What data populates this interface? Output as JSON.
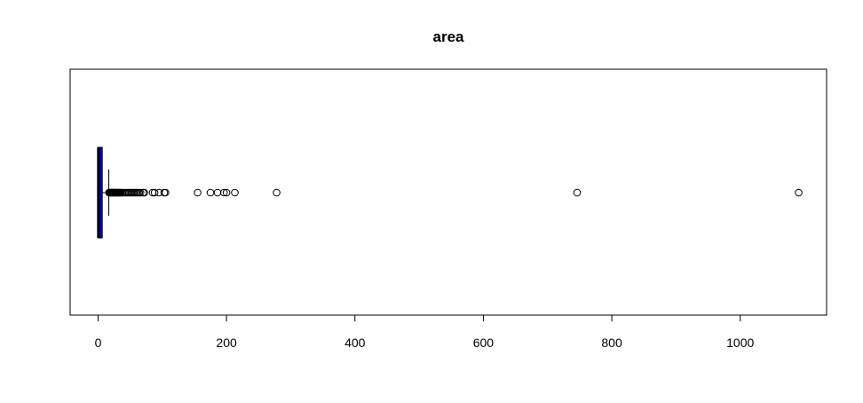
{
  "chart_data": {
    "type": "boxplot",
    "orientation": "horizontal",
    "title": "area",
    "xlabel": "",
    "ylabel": "",
    "xlim": [
      -43.5,
      1134.5
    ],
    "xticks": [
      0,
      200,
      400,
      600,
      800,
      1000
    ],
    "xtick_labels": [
      "0",
      "200",
      "400",
      "600",
      "800",
      "1000"
    ],
    "box": {
      "min": 0,
      "q1": 0,
      "median": 0.5,
      "q3": 6.5,
      "whisker_high": 16.7,
      "fill_color": "#0000cc"
    },
    "outliers": [
      17,
      18,
      19,
      20,
      21,
      22,
      23,
      24,
      25,
      26,
      27,
      28,
      29,
      30,
      31,
      32,
      33,
      34,
      35,
      36,
      38,
      40,
      42,
      44,
      46,
      48,
      50,
      52,
      54,
      56,
      58,
      60,
      62,
      64,
      66,
      70,
      72,
      85,
      88,
      95,
      103,
      105,
      155,
      175,
      186,
      196,
      200,
      213,
      278,
      746,
      1091
    ],
    "grid": false,
    "legend": "none"
  },
  "colors": {
    "box_fill": "#0000cc",
    "axis": "#000000",
    "outlier_stroke": "#000000"
  }
}
